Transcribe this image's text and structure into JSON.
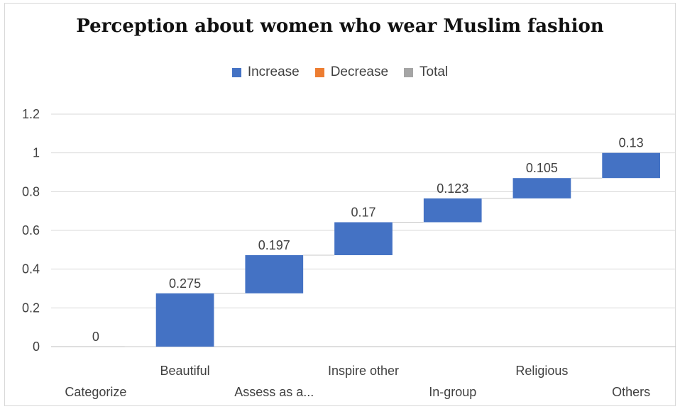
{
  "chart_data": {
    "type": "bar",
    "subtype": "waterfall",
    "title": "Perception about women who wear Muslim fashion",
    "legend": [
      {
        "label": "Increase",
        "color": "#4472c4"
      },
      {
        "label": "Decrease",
        "color": "#ed7d31"
      },
      {
        "label": "Total",
        "color": "#a5a5a5"
      }
    ],
    "legend_position": "top",
    "categories": [
      "Categorize",
      "Beautiful",
      "Assess as a...",
      "Inspire other",
      "In-group",
      "Religious",
      "Others"
    ],
    "values": [
      0,
      0.275,
      0.197,
      0.17,
      0.123,
      0.105,
      0.13
    ],
    "data_labels": [
      "0",
      "0.275",
      "0.197",
      "0.17",
      "0.123",
      "0.105",
      "0.13"
    ],
    "yticks": [
      "0",
      "0.2",
      "0.4",
      "0.6",
      "0.8",
      "1",
      "1.2"
    ],
    "ylim": [
      0,
      1.2
    ],
    "grid": true,
    "xlabel": "",
    "ylabel": ""
  }
}
